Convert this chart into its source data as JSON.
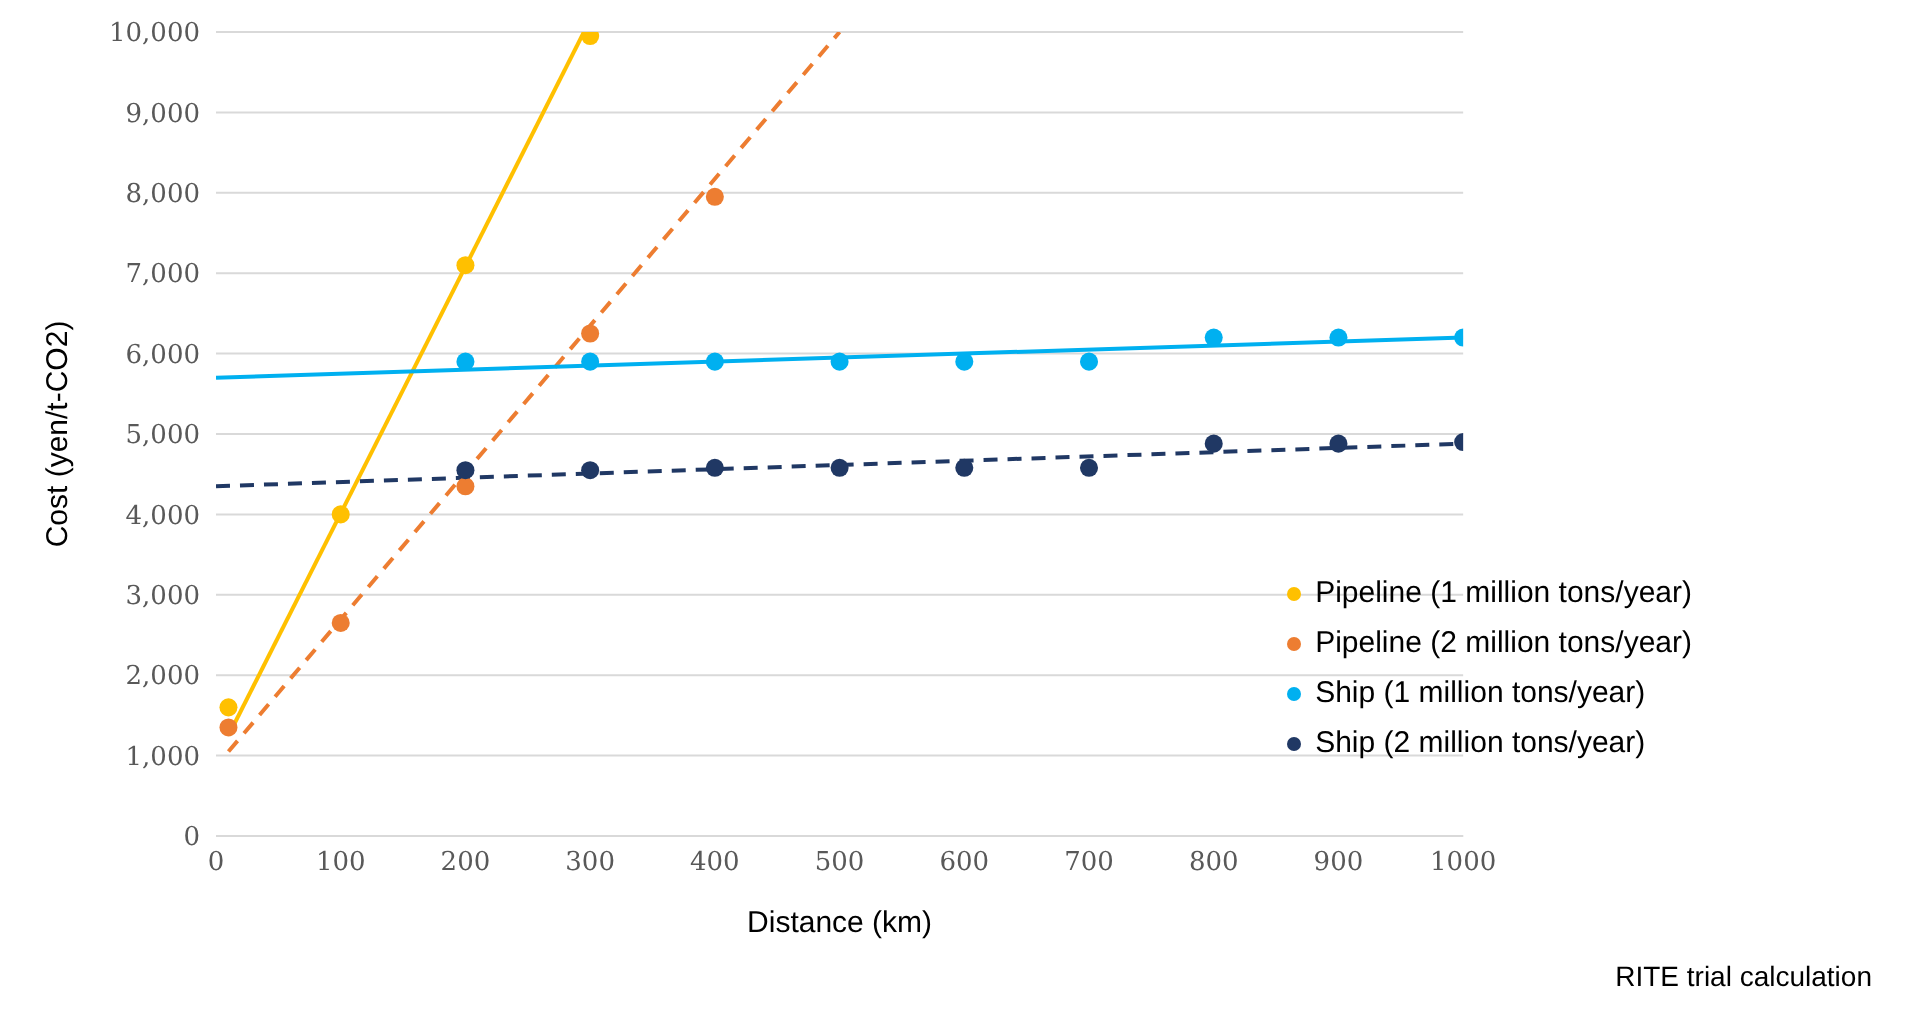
{
  "chart_data": {
    "type": "scatter",
    "xlabel": "Distance (km)",
    "ylabel": "Cost (yen/t-CO2)",
    "annotations": [
      "RITE trial calculation"
    ],
    "xlim": [
      0,
      1000
    ],
    "xticks": [
      0,
      100,
      200,
      300,
      400,
      500,
      600,
      700,
      800,
      900,
      1000
    ],
    "ylim": [
      0,
      10000
    ],
    "yticks": [
      0,
      {
        "value": 1000,
        "label": "1,000"
      },
      {
        "value": 2000,
        "label": "2,000"
      },
      {
        "value": 3000,
        "label": "3,000"
      },
      {
        "value": 4000,
        "label": "4,000"
      },
      {
        "value": 5000,
        "label": "5,000"
      },
      {
        "value": 6000,
        "label": "6,000"
      },
      {
        "value": 7000,
        "label": "7,000"
      },
      {
        "value": 8000,
        "label": "8,000"
      },
      {
        "value": 9000,
        "label": "9,000"
      },
      {
        "value": 10000,
        "label": "10,000"
      }
    ],
    "grid": "y",
    "legend": "right",
    "marker": "circle",
    "series": [
      {
        "name": "Pipeline (1 million tons/year)",
        "color": "#ffc000",
        "x": [
          10,
          100,
          200,
          300
        ],
        "values": [
          1600,
          4000,
          7100,
          9950
        ]
      },
      {
        "name": "Pipeline (2 million tons/year)",
        "color": "#ed7d31",
        "x": [
          10,
          100,
          200,
          300,
          400
        ],
        "values": [
          1350,
          2650,
          4350,
          6250,
          7950
        ]
      },
      {
        "name": "Ship (1 million tons/year)",
        "color": "#00b0f0",
        "x": [
          200,
          300,
          400,
          500,
          600,
          700,
          800,
          900,
          1000
        ],
        "values": [
          5900,
          5900,
          5900,
          5900,
          5900,
          5900,
          6200,
          6200,
          6200
        ]
      },
      {
        "name": "Ship (2 million tons/year)",
        "color": "#203864",
        "x": [
          200,
          300,
          400,
          500,
          600,
          700,
          800,
          900,
          1000
        ],
        "values": [
          4550,
          4550,
          4580,
          4580,
          4580,
          4580,
          4880,
          4880,
          4900
        ]
      },
      {
        "type": "line",
        "marker": "none",
        "line_style": "solid",
        "color": "#ffc000",
        "x": [
          10,
          295
        ],
        "values": [
          1250,
          10000
        ]
      },
      {
        "type": "line",
        "marker": "none",
        "line_style": "dashed",
        "color": "#ed7d31",
        "x": [
          10,
          500
        ],
        "values": [
          1050,
          10000
        ]
      },
      {
        "type": "line",
        "marker": "none",
        "line_style": "solid",
        "color": "#00b0f0",
        "x": [
          0,
          1000
        ],
        "values": [
          5700,
          6200
        ]
      },
      {
        "type": "line",
        "marker": "none",
        "line_style": "dashed",
        "color": "#203864",
        "x": [
          0,
          1000
        ],
        "values": [
          4350,
          4880
        ]
      }
    ]
  }
}
